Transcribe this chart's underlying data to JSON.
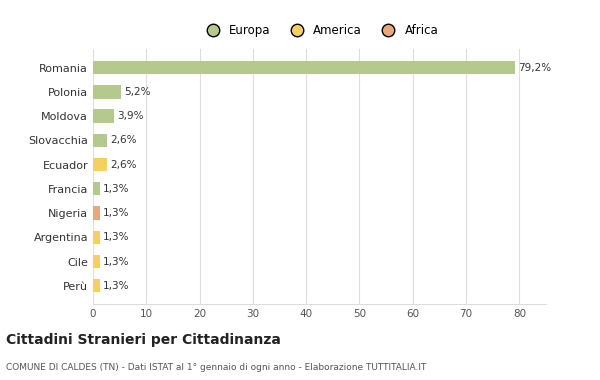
{
  "categories": [
    "Romania",
    "Polonia",
    "Moldova",
    "Slovacchia",
    "Ecuador",
    "Francia",
    "Nigeria",
    "Argentina",
    "Cile",
    "Perù"
  ],
  "values": [
    79.2,
    5.2,
    3.9,
    2.6,
    2.6,
    1.3,
    1.3,
    1.3,
    1.3,
    1.3
  ],
  "colors": [
    "#b5c98e",
    "#b5c98e",
    "#b5c98e",
    "#b5c98e",
    "#f5d060",
    "#b5c98e",
    "#e8a87c",
    "#f5d060",
    "#f5d060",
    "#f5d060"
  ],
  "labels": [
    "79,2%",
    "5,2%",
    "3,9%",
    "2,6%",
    "2,6%",
    "1,3%",
    "1,3%",
    "1,3%",
    "1,3%",
    "1,3%"
  ],
  "legend_labels": [
    "Europa",
    "America",
    "Africa"
  ],
  "legend_colors": [
    "#b5c98e",
    "#f5d060",
    "#e8a87c"
  ],
  "xlim": [
    0,
    85
  ],
  "xticks": [
    0,
    10,
    20,
    30,
    40,
    50,
    60,
    70,
    80
  ],
  "title": "Cittadini Stranieri per Cittadinanza",
  "subtitle": "COMUNE DI CALDES (TN) - Dati ISTAT al 1° gennaio di ogni anno - Elaborazione TUTTITALIA.IT",
  "bg_color": "#ffffff",
  "grid_color": "#dddddd",
  "bar_height": 0.55
}
